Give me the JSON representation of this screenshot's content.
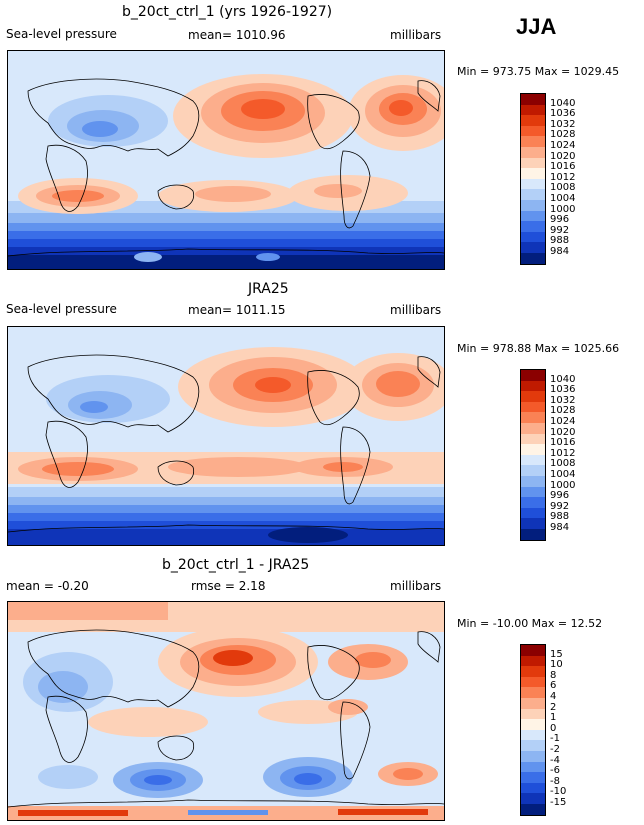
{
  "season": "JJA",
  "panels": [
    {
      "id": "model",
      "title": "b_20ct_ctrl_1 (yrs 1926-1927)",
      "left_label": "Sea-level pressure",
      "center_label": "mean= 1010.96",
      "units": "millibars",
      "minmax": "Min = 973.75 Max = 1029.45",
      "colorbar": {
        "labels": [
          "1040",
          "1036",
          "1032",
          "1028",
          "1024",
          "1020",
          "1016",
          "1012",
          "1008",
          "1004",
          "1000",
          "996",
          "992",
          "988",
          "984"
        ],
        "colors": [
          "#8b0000",
          "#c01a00",
          "#e23a0c",
          "#f45a2a",
          "#fa8255",
          "#fcae8c",
          "#fdd2b8",
          "#fff4e6",
          "#d8e8fb",
          "#b3d0f7",
          "#8db5f2",
          "#6193ee",
          "#3a6ee8",
          "#1f4fd9",
          "#0f34b8",
          "#021e7d"
        ]
      }
    },
    {
      "id": "obs",
      "title": "JRA25",
      "left_label": "Sea-level pressure",
      "center_label": "mean= 1011.15",
      "units": "millibars",
      "minmax": "Min = 978.88 Max = 1025.66",
      "colorbar": {
        "labels": [
          "1040",
          "1036",
          "1032",
          "1028",
          "1024",
          "1020",
          "1016",
          "1012",
          "1008",
          "1004",
          "1000",
          "996",
          "992",
          "988",
          "984"
        ],
        "colors": [
          "#8b0000",
          "#c01a00",
          "#e23a0c",
          "#f45a2a",
          "#fa8255",
          "#fcae8c",
          "#fdd2b8",
          "#fff4e6",
          "#d8e8fb",
          "#b3d0f7",
          "#8db5f2",
          "#6193ee",
          "#3a6ee8",
          "#1f4fd9",
          "#0f34b8",
          "#021e7d"
        ]
      }
    },
    {
      "id": "diff",
      "title": "b_20ct_ctrl_1 - JRA25",
      "left_label": "mean =  -0.20",
      "center_label": "rmse =    2.18",
      "units": "millibars",
      "minmax": "Min = -10.00 Max =  12.52",
      "colorbar": {
        "labels": [
          "15",
          "10",
          "8",
          "6",
          "4",
          "2",
          "1",
          "0",
          "-1",
          "-2",
          "-4",
          "-6",
          "-8",
          "-10",
          "-15"
        ],
        "colors": [
          "#8b0000",
          "#c01a00",
          "#e23a0c",
          "#f45a2a",
          "#fa8255",
          "#fcae8c",
          "#fdd2b8",
          "#fff4e6",
          "#d8e8fb",
          "#b3d0f7",
          "#8db5f2",
          "#6193ee",
          "#3a6ee8",
          "#1f4fd9",
          "#0f34b8",
          "#021e7d"
        ]
      }
    }
  ]
}
